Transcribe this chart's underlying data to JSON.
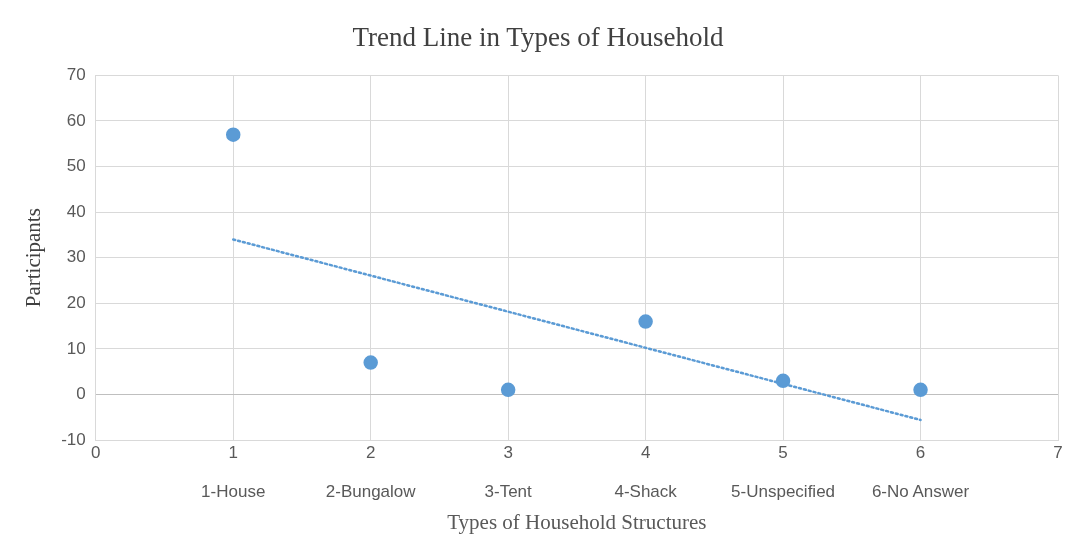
{
  "chart_data": {
    "type": "scatter",
    "title": "Trend Line in Types of Household",
    "xlabel": "Types of Household Structures",
    "ylabel": "Participants",
    "x": [
      1,
      2,
      3,
      4,
      5,
      6
    ],
    "series": [
      {
        "type": "scatter",
        "color": "#5b9bd5",
        "marker": "circle",
        "values": [
          57,
          7,
          1,
          16,
          3,
          1
        ]
      },
      {
        "type": "line",
        "color": "#5b9bd5",
        "marker": "none",
        "line_style": "dotted",
        "x": [
          1,
          6
        ],
        "values": [
          34,
          -5.6
        ]
      }
    ],
    "xlim": [
      0,
      7
    ],
    "xticks": [
      0,
      1,
      2,
      3,
      4,
      5,
      6,
      7
    ],
    "x2lim": [
      0,
      7
    ],
    "x2ticks": [
      {
        "value": 1,
        "label": "1-House"
      },
      {
        "value": 2,
        "label": "2-Bungalow"
      },
      {
        "value": 3,
        "label": "3-Tent"
      },
      {
        "value": 4,
        "label": "4-Shack"
      },
      {
        "value": 5,
        "label": "5-Unspecified"
      },
      {
        "value": 6,
        "label": "6-No Answer"
      }
    ],
    "ylim": [
      -10,
      70
    ],
    "yticks": [
      -10,
      0,
      10,
      20,
      30,
      40,
      50,
      60,
      70
    ],
    "grid": true,
    "legend": false
  }
}
